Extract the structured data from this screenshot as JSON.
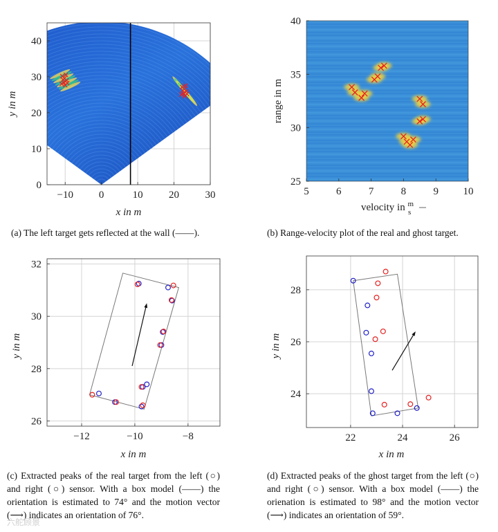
{
  "colors": {
    "field_bg": "#1e63d2",
    "heat_bg": "#3a8fd8",
    "real_marker": "#e52222",
    "ghost_marker": "#2020c8",
    "box": "#777777"
  },
  "panel_a": {
    "caption": "(a) The left target gets reflected at the wall (——).",
    "chart_data": {
      "type": "heatmap",
      "xlabel": "x in m",
      "ylabel": "y in m",
      "xlim": [
        -15,
        30
      ],
      "ylim": [
        0,
        45
      ],
      "xticks": [
        "−10",
        "0",
        "10",
        "20",
        "30"
      ],
      "yticks": [
        "0",
        "10",
        "20",
        "30",
        "40"
      ],
      "wall_x": 8,
      "marker_clusters": [
        [
          -10,
          29
        ],
        [
          23,
          26
        ]
      ]
    }
  },
  "panel_b": {
    "caption": "(b) Range-velocity plot of the real and ghost target.",
    "chart_data": {
      "type": "heatmap",
      "xlabel": "velocity in m/s",
      "ylabel": "range in m",
      "xlim": [
        5,
        10
      ],
      "ylim": [
        25,
        40
      ],
      "xticks": [
        "5",
        "6",
        "7",
        "8",
        "9",
        "10"
      ],
      "yticks": [
        "25",
        "30",
        "35",
        "40"
      ],
      "peaks": [
        [
          6.4,
          33.8
        ],
        [
          6.5,
          33.3
        ],
        [
          6.7,
          32.8
        ],
        [
          6.8,
          33.2
        ],
        [
          7.1,
          34.5
        ],
        [
          7.2,
          34.8
        ],
        [
          7.3,
          35.6
        ],
        [
          7.4,
          35.8
        ],
        [
          8.5,
          32.7
        ],
        [
          8.6,
          32.2
        ],
        [
          8.5,
          30.6
        ],
        [
          8.6,
          30.8
        ],
        [
          8.0,
          29.2
        ],
        [
          8.1,
          28.7
        ],
        [
          8.2,
          28.4
        ],
        [
          8.3,
          28.9
        ]
      ]
    }
  },
  "panel_c": {
    "caption": "(c) Extracted peaks of the real target from the left (○) and right (○) sensor. With a box model (——) the orientation is estimated to 74° and the motion vector (⟶) indicates an orientation of 76°.",
    "chart_data": {
      "type": "scatter",
      "xlabel": "x in m",
      "ylabel": "y in m",
      "xlim": [
        -13.3,
        -6.8
      ],
      "ylim": [
        25.8,
        32.2
      ],
      "xticks": [
        "−12",
        "−10",
        "−8"
      ],
      "yticks": [
        "26",
        "28",
        "30",
        "32"
      ],
      "series": [
        {
          "name": "left sensor",
          "color": "#2020c8",
          "points": [
            [
              -11.35,
              27.05
            ],
            [
              -10.75,
              26.72
            ],
            [
              -9.75,
              26.55
            ],
            [
              -9.55,
              27.4
            ],
            [
              -9.7,
              27.3
            ],
            [
              -9.0,
              28.9
            ],
            [
              -8.95,
              29.4
            ],
            [
              -8.6,
              30.6
            ],
            [
              -8.75,
              31.1
            ],
            [
              -9.85,
              31.25
            ]
          ]
        },
        {
          "name": "right sensor",
          "color": "#e52222",
          "points": [
            [
              -11.6,
              27.0
            ],
            [
              -10.7,
              26.72
            ],
            [
              -9.7,
              26.6
            ],
            [
              -9.75,
              27.3
            ],
            [
              -9.05,
              28.9
            ],
            [
              -8.92,
              29.42
            ],
            [
              -8.62,
              30.62
            ],
            [
              -8.55,
              31.18
            ],
            [
              -9.9,
              31.22
            ]
          ]
        }
      ],
      "box": [
        [
          -11.7,
          27.0
        ],
        [
          -9.65,
          26.45
        ],
        [
          -8.35,
          31.1
        ],
        [
          -10.45,
          31.65
        ]
      ],
      "motion_vector": [
        [
          -10.1,
          28.1
        ],
        [
          -9.55,
          30.5
        ]
      ]
    }
  },
  "panel_d": {
    "caption": "(d) Extracted peaks of the ghost target from the left (○) and right (○) sensor. With a box model (——) the orienation is estimated to 98° and the motion vector (⟶) indicates an orientation of 59°.",
    "chart_data": {
      "type": "scatter",
      "xlabel": "x in m",
      "ylabel": "y in m",
      "xlim": [
        20.3,
        26.9
      ],
      "ylim": [
        22.7,
        29.3
      ],
      "xticks": [
        "22",
        "24",
        "26"
      ],
      "yticks": [
        "24",
        "26",
        "28"
      ],
      "series": [
        {
          "name": "left sensor",
          "color": "#2020c8",
          "points": [
            [
              22.1,
              28.35
            ],
            [
              22.65,
              27.4
            ],
            [
              22.6,
              26.35
            ],
            [
              22.8,
              25.55
            ],
            [
              22.8,
              24.1
            ],
            [
              22.85,
              23.25
            ],
            [
              23.8,
              23.25
            ],
            [
              24.55,
              23.45
            ]
          ]
        },
        {
          "name": "right sensor",
          "color": "#e52222",
          "points": [
            [
              23.35,
              28.7
            ],
            [
              23.05,
              28.25
            ],
            [
              23.0,
              27.7
            ],
            [
              23.25,
              26.4
            ],
            [
              22.95,
              26.1
            ],
            [
              23.3,
              23.58
            ],
            [
              24.3,
              23.6
            ],
            [
              25.0,
              23.85
            ]
          ]
        }
      ],
      "box": [
        [
          22.1,
          28.35
        ],
        [
          23.8,
          28.6
        ],
        [
          24.6,
          23.45
        ],
        [
          22.8,
          23.15
        ]
      ],
      "motion_vector": [
        [
          23.6,
          24.9
        ],
        [
          24.5,
          26.4
        ]
      ]
    }
  },
  "watermark": "六舵顾景"
}
